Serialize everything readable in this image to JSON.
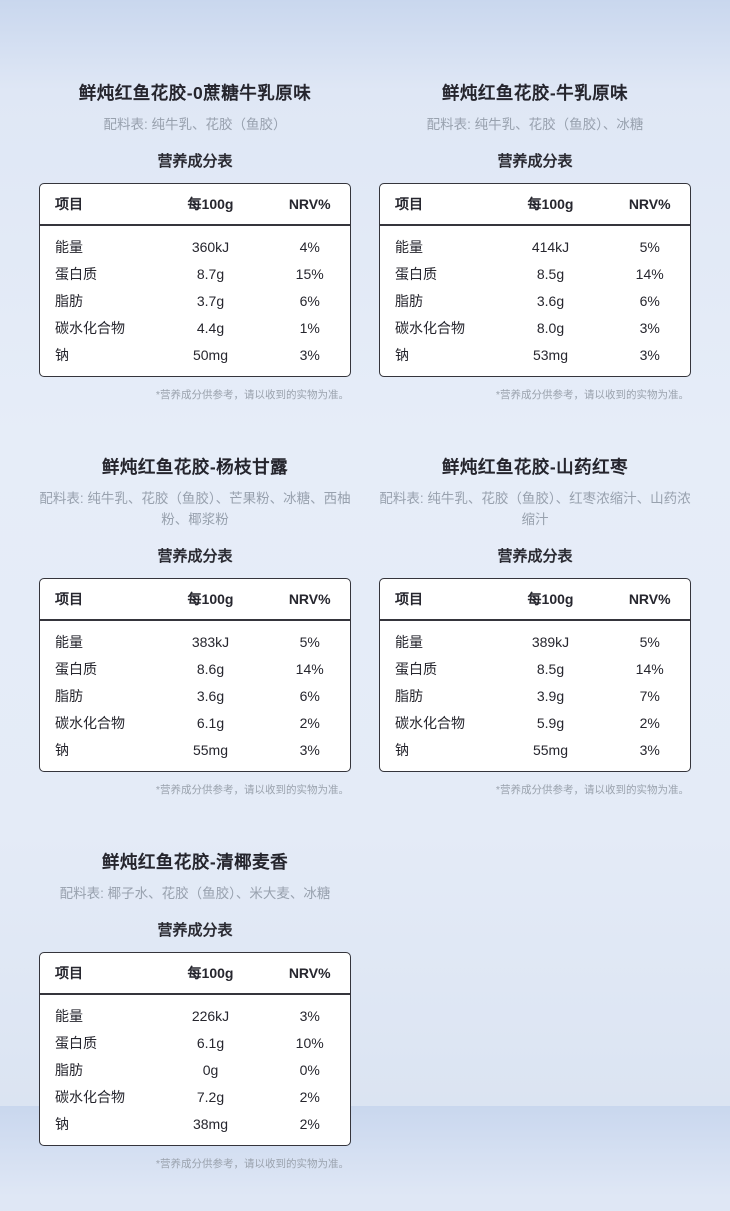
{
  "shared": {
    "ingredients_label": "配料表:",
    "nutrition_title": "营养成分表",
    "headers": [
      "项目",
      "每100g",
      "NRV%"
    ],
    "footnote": "*营养成分供参考，请以收到的实物为准。"
  },
  "products": [
    {
      "title": "鲜炖红鱼花胶-0蔗糖牛乳原味",
      "ingredients": "纯牛乳、花胶（鱼胶）",
      "rows": [
        {
          "item": "能量",
          "per100g": "360kJ",
          "nrv": "4%"
        },
        {
          "item": "蛋白质",
          "per100g": "8.7g",
          "nrv": "15%"
        },
        {
          "item": "脂肪",
          "per100g": "3.7g",
          "nrv": "6%"
        },
        {
          "item": "碳水化合物",
          "per100g": "4.4g",
          "nrv": "1%"
        },
        {
          "item": "钠",
          "per100g": "50mg",
          "nrv": "3%"
        }
      ]
    },
    {
      "title": "鲜炖红鱼花胶-牛乳原味",
      "ingredients": "纯牛乳、花胶（鱼胶）、冰糖",
      "rows": [
        {
          "item": "能量",
          "per100g": "414kJ",
          "nrv": "5%"
        },
        {
          "item": "蛋白质",
          "per100g": "8.5g",
          "nrv": "14%"
        },
        {
          "item": "脂肪",
          "per100g": "3.6g",
          "nrv": "6%"
        },
        {
          "item": "碳水化合物",
          "per100g": "8.0g",
          "nrv": "3%"
        },
        {
          "item": "钠",
          "per100g": "53mg",
          "nrv": "3%"
        }
      ]
    },
    {
      "title": "鲜炖红鱼花胶-杨枝甘露",
      "ingredients": "纯牛乳、花胶（鱼胶）、芒果粉、冰糖、西柚粉、椰浆粉",
      "rows": [
        {
          "item": "能量",
          "per100g": "383kJ",
          "nrv": "5%"
        },
        {
          "item": "蛋白质",
          "per100g": "8.6g",
          "nrv": "14%"
        },
        {
          "item": "脂肪",
          "per100g": "3.6g",
          "nrv": "6%"
        },
        {
          "item": "碳水化合物",
          "per100g": "6.1g",
          "nrv": "2%"
        },
        {
          "item": "钠",
          "per100g": "55mg",
          "nrv": "3%"
        }
      ]
    },
    {
      "title": "鲜炖红鱼花胶-山药红枣",
      "ingredients": "纯牛乳、花胶（鱼胶）、红枣浓缩汁、山药浓缩汁",
      "rows": [
        {
          "item": "能量",
          "per100g": "389kJ",
          "nrv": "5%"
        },
        {
          "item": "蛋白质",
          "per100g": "8.5g",
          "nrv": "14%"
        },
        {
          "item": "脂肪",
          "per100g": "3.9g",
          "nrv": "7%"
        },
        {
          "item": "碳水化合物",
          "per100g": "5.9g",
          "nrv": "2%"
        },
        {
          "item": "钠",
          "per100g": "55mg",
          "nrv": "3%"
        }
      ]
    },
    {
      "title": "鲜炖红鱼花胶-清椰麦香",
      "ingredients": "椰子水、花胶（鱼胶）、米大麦、冰糖",
      "rows": [
        {
          "item": "能量",
          "per100g": "226kJ",
          "nrv": "3%"
        },
        {
          "item": "蛋白质",
          "per100g": "6.1g",
          "nrv": "10%"
        },
        {
          "item": "脂肪",
          "per100g": "0g",
          "nrv": "0%"
        },
        {
          "item": "碳水化合物",
          "per100g": "7.2g",
          "nrv": "2%"
        },
        {
          "item": "钠",
          "per100g": "38mg",
          "nrv": "2%"
        }
      ]
    }
  ]
}
